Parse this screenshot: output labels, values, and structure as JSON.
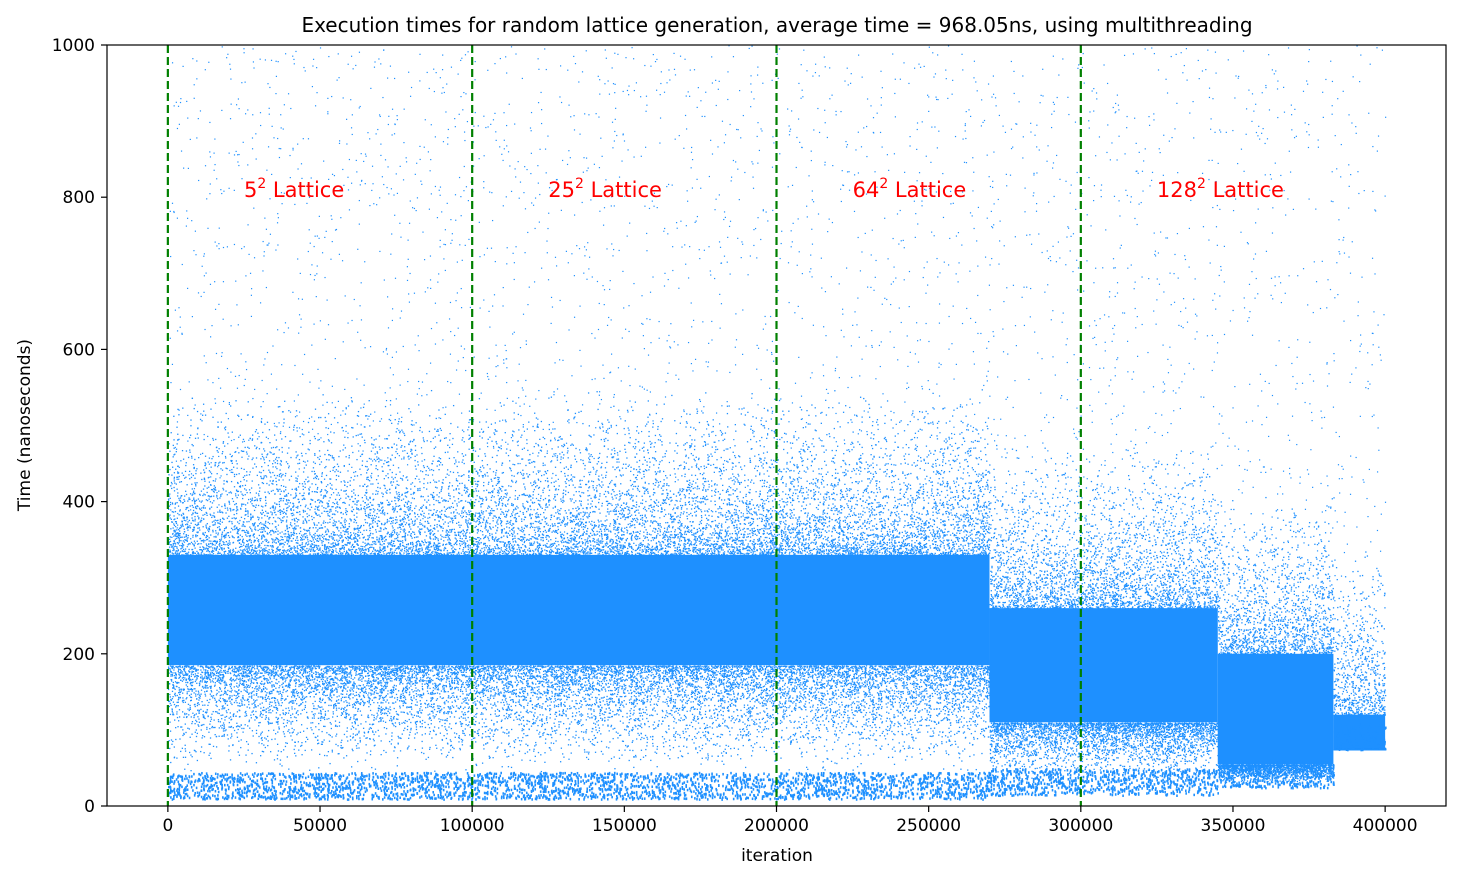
{
  "chart_data": {
    "type": "scatter",
    "title": "Execution times for random lattice generation, average time = 968.05ns, using multithreading",
    "xlabel": "iteration",
    "ylabel": "Time (nanoseconds)",
    "xlim": [
      -20000,
      420000
    ],
    "ylim": [
      0,
      1000
    ],
    "x_ticks": [
      0,
      50000,
      100000,
      150000,
      200000,
      250000,
      300000,
      350000,
      400000
    ],
    "x_tick_labels": [
      "0",
      "50000",
      "100000",
      "150000",
      "200000",
      "250000",
      "300000",
      "350000",
      "400000"
    ],
    "y_ticks": [
      0,
      200,
      400,
      600,
      800,
      1000
    ],
    "y_tick_labels": [
      "0",
      "200",
      "400",
      "600",
      "800",
      "1000"
    ],
    "grid": false,
    "marker_color": "#1e90ff",
    "divider_color": "#008000",
    "label_color": "#ff0000",
    "dividers": [
      0,
      100000,
      200000,
      300000
    ],
    "annotations": [
      {
        "base": "5",
        "sup": "2",
        "text": " Lattice",
        "x": 25000,
        "y": 800
      },
      {
        "base": "25",
        "sup": "2",
        "text": " Lattice",
        "x": 125000,
        "y": 800
      },
      {
        "base": "64",
        "sup": "2",
        "text": " Lattice",
        "x": 225000,
        "y": 800
      },
      {
        "base": "128",
        "sup": "2",
        "text": " Lattice",
        "x": 325000,
        "y": 800
      }
    ],
    "segments": [
      {
        "x_start": 0,
        "x_end": 270000,
        "core_min": 185,
        "core_max": 330,
        "floor": 10,
        "sparse_ceiling": 1000
      },
      {
        "x_start": 270000,
        "x_end": 345000,
        "core_min": 110,
        "core_max": 260,
        "floor": 15,
        "sparse_ceiling": 1000
      },
      {
        "x_start": 345000,
        "x_end": 383000,
        "core_min": 55,
        "core_max": 200,
        "floor": 25,
        "sparse_ceiling": 1000
      },
      {
        "x_start": 383000,
        "x_end": 400000,
        "core_min": 75,
        "core_max": 120,
        "floor": 75,
        "sparse_ceiling": 1000
      }
    ]
  }
}
